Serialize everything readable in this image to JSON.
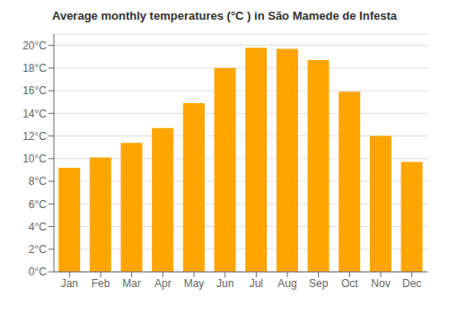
{
  "chart_data": {
    "type": "bar",
    "title": "Average monthly temperatures (°C ) in São Mamede de Infesta",
    "categories": [
      "Jan",
      "Feb",
      "Mar",
      "Apr",
      "May",
      "Jun",
      "Jul",
      "Aug",
      "Sep",
      "Oct",
      "Nov",
      "Dec"
    ],
    "values": [
      9.2,
      10.1,
      11.4,
      12.7,
      14.9,
      18.0,
      19.8,
      19.7,
      18.7,
      15.9,
      12.0,
      9.7
    ],
    "color": "#FFA500",
    "ylim": [
      0,
      21
    ],
    "yticks": [
      {
        "value": 0,
        "label": "0°C"
      },
      {
        "value": 2,
        "label": "2°C"
      },
      {
        "value": 4,
        "label": "4°C"
      },
      {
        "value": 6,
        "label": "6°C"
      },
      {
        "value": 8,
        "label": "8°C"
      },
      {
        "value": 10,
        "label": "10°C"
      },
      {
        "value": 12,
        "label": "12°C"
      },
      {
        "value": 14,
        "label": "14°C"
      },
      {
        "value": 16,
        "label": "16°C"
      },
      {
        "value": 18,
        "label": "18°C"
      },
      {
        "value": 20,
        "label": "20°C"
      }
    ],
    "grid": true
  }
}
